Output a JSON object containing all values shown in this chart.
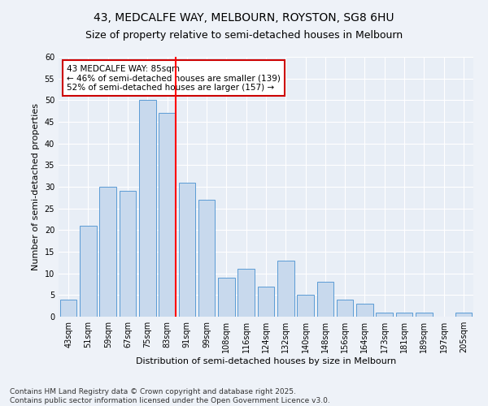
{
  "title": "43, MEDCALFE WAY, MELBOURN, ROYSTON, SG8 6HU",
  "subtitle": "Size of property relative to semi-detached houses in Melbourn",
  "xlabel": "Distribution of semi-detached houses by size in Melbourn",
  "ylabel": "Number of semi-detached properties",
  "categories": [
    "43sqm",
    "51sqm",
    "59sqm",
    "67sqm",
    "75sqm",
    "83sqm",
    "91sqm",
    "99sqm",
    "108sqm",
    "116sqm",
    "124sqm",
    "132sqm",
    "140sqm",
    "148sqm",
    "156sqm",
    "164sqm",
    "173sqm",
    "181sqm",
    "189sqm",
    "197sqm",
    "205sqm"
  ],
  "values": [
    4,
    21,
    30,
    29,
    50,
    47,
    31,
    27,
    9,
    11,
    7,
    13,
    5,
    8,
    4,
    3,
    1,
    1,
    1,
    0,
    1
  ],
  "bar_color": "#c8d9ed",
  "bar_edge_color": "#5b9bd5",
  "red_line_bar_index": 5,
  "annotation_text": "43 MEDCALFE WAY: 85sqm\n← 46% of semi-detached houses are smaller (139)\n52% of semi-detached houses are larger (157) →",
  "annotation_box_color": "#ffffff",
  "annotation_box_edge": "#cc0000",
  "ylim": [
    0,
    60
  ],
  "yticks": [
    0,
    5,
    10,
    15,
    20,
    25,
    30,
    35,
    40,
    45,
    50,
    55,
    60
  ],
  "footer": "Contains HM Land Registry data © Crown copyright and database right 2025.\nContains public sector information licensed under the Open Government Licence v3.0.",
  "background_color": "#eef2f8",
  "plot_bg_color": "#e8eef6",
  "grid_color": "#ffffff",
  "title_fontsize": 10,
  "subtitle_fontsize": 9,
  "axis_label_fontsize": 8,
  "tick_fontsize": 7,
  "annotation_fontsize": 7.5,
  "footer_fontsize": 6.5
}
